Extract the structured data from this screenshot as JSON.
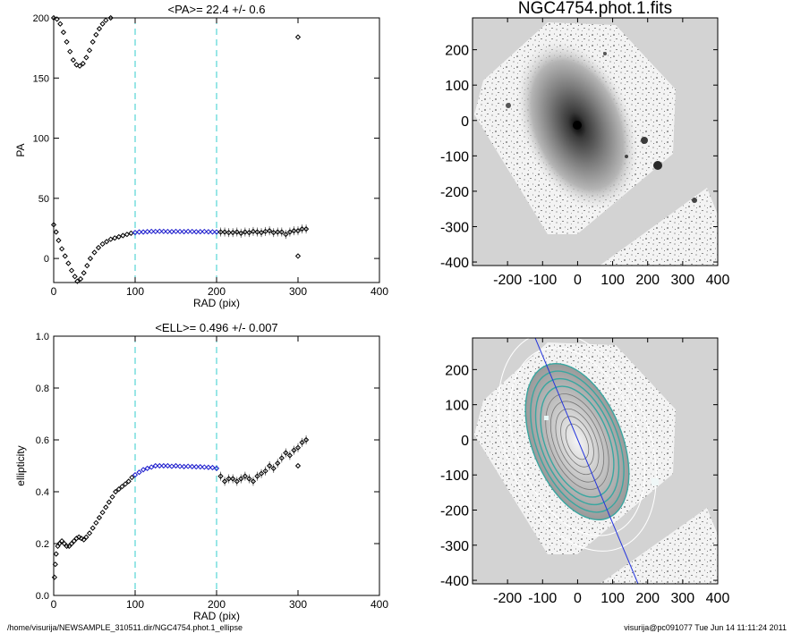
{
  "footer": {
    "path": "/home/visurija/NEWSAMPLE_310511.dir/NGC4754.phot.1_ellipse",
    "stamp": "visurija@pc091077  Tue Jun 14 11:11:24 2011"
  },
  "colors": {
    "marker": "#000000",
    "fit_marker": "#1a1acc",
    "guide_line": "#33cccc",
    "image_bg": "#d3d3d3",
    "major_axis": "#2233dd",
    "isophote": "#3aa6a0"
  },
  "chart_data": [
    {
      "type": "scatter",
      "panel": "pa-profile",
      "title": "<PA>=  22.4 +/-   0.6",
      "xlabel": "RAD (pix)",
      "ylabel": "PA",
      "xlim": [
        0,
        400
      ],
      "ylim": [
        -20,
        200
      ],
      "xticks": [
        0,
        100,
        200,
        300,
        400
      ],
      "yticks": [
        0,
        50,
        100,
        150,
        200
      ],
      "guide_lines_x": [
        100,
        200
      ],
      "series": [
        {
          "values_upper_branch": [
            [
              0,
              200
            ],
            [
              4,
              199
            ],
            [
              8,
              195
            ],
            [
              12,
              188
            ],
            [
              16,
              180
            ],
            [
              20,
              172
            ],
            [
              24,
              165
            ],
            [
              28,
              161
            ],
            [
              32,
              160
            ],
            [
              36,
              162
            ],
            [
              40,
              167
            ],
            [
              44,
              173
            ],
            [
              48,
              180
            ],
            [
              52,
              186
            ],
            [
              56,
              191
            ],
            [
              60,
              195
            ],
            [
              64,
              198
            ],
            [
              70,
              200
            ]
          ],
          "values_main": [
            [
              0,
              28
            ],
            [
              3,
              22
            ],
            [
              6,
              15
            ],
            [
              10,
              8
            ],
            [
              14,
              2
            ],
            [
              18,
              -4
            ],
            [
              22,
              -10
            ],
            [
              26,
              -15
            ],
            [
              29,
              -19
            ],
            [
              33,
              -17
            ],
            [
              37,
              -12
            ],
            [
              41,
              -6
            ],
            [
              45,
              0
            ],
            [
              50,
              5
            ],
            [
              55,
              9
            ],
            [
              60,
              12
            ],
            [
              65,
              14
            ],
            [
              70,
              16
            ],
            [
              75,
              17
            ],
            [
              80,
              18
            ],
            [
              85,
              19
            ],
            [
              90,
              20
            ],
            [
              95,
              21
            ]
          ],
          "values_fit": [
            [
              100,
              21.5
            ],
            [
              105,
              22
            ],
            [
              110,
              22
            ],
            [
              115,
              22.3
            ],
            [
              120,
              22.5
            ],
            [
              125,
              22.4
            ],
            [
              130,
              22.6
            ],
            [
              135,
              22.5
            ],
            [
              140,
              22.4
            ],
            [
              145,
              22.3
            ],
            [
              150,
              22.5
            ],
            [
              155,
              22.4
            ],
            [
              160,
              22.3
            ],
            [
              165,
              22.5
            ],
            [
              170,
              22.4
            ],
            [
              175,
              22.2
            ],
            [
              180,
              22.3
            ],
            [
              185,
              22.4
            ],
            [
              190,
              22.2
            ],
            [
              195,
              22.1
            ],
            [
              200,
              22
            ]
          ],
          "values_outer": [
            [
              205,
              22
            ],
            [
              210,
              22
            ],
            [
              215,
              21.5
            ],
            [
              220,
              21.5
            ],
            [
              225,
              22
            ],
            [
              230,
              21
            ],
            [
              235,
              22
            ],
            [
              240,
              21.5
            ],
            [
              245,
              22.5
            ],
            [
              250,
              22
            ],
            [
              255,
              21.5
            ],
            [
              260,
              22.5
            ],
            [
              265,
              23
            ],
            [
              270,
              21.5
            ],
            [
              275,
              22
            ],
            [
              280,
              22
            ],
            [
              285,
              20
            ],
            [
              290,
              22
            ],
            [
              295,
              23
            ],
            [
              300,
              23
            ],
            [
              305,
              24.5
            ],
            [
              310,
              24.5
            ]
          ],
          "outliers": [
            [
              300,
              184
            ],
            [
              300,
              2
            ]
          ]
        }
      ]
    },
    {
      "type": "scatter",
      "panel": "ellipticity-profile",
      "title": "<ELL>= 0.496 +/-  0.007",
      "xlabel": "RAD (pix)",
      "ylabel": "ellipticity",
      "xlim": [
        0,
        400
      ],
      "ylim": [
        0.0,
        1.0
      ],
      "xticks": [
        0,
        100,
        200,
        300,
        400
      ],
      "yticks": [
        0.0,
        0.2,
        0.4,
        0.6,
        0.8,
        1.0
      ],
      "ytick_labels": [
        "0.0",
        "0.2",
        "0.4",
        "0.6",
        "0.8",
        "1.0"
      ],
      "guide_lines_x": [
        100,
        200
      ],
      "series": [
        {
          "values_main": [
            [
              1,
              0.07
            ],
            [
              2,
              0.12
            ],
            [
              3,
              0.16
            ],
            [
              5,
              0.19
            ],
            [
              7,
              0.2
            ],
            [
              10,
              0.21
            ],
            [
              13,
              0.2
            ],
            [
              16,
              0.19
            ],
            [
              19,
              0.19
            ],
            [
              22,
              0.2
            ],
            [
              25,
              0.21
            ],
            [
              28,
              0.22
            ],
            [
              31,
              0.225
            ],
            [
              34,
              0.22
            ],
            [
              37,
              0.215
            ],
            [
              40,
              0.225
            ],
            [
              44,
              0.24
            ],
            [
              48,
              0.26
            ],
            [
              52,
              0.28
            ],
            [
              56,
              0.3
            ],
            [
              60,
              0.32
            ],
            [
              64,
              0.34
            ],
            [
              68,
              0.36
            ],
            [
              72,
              0.38
            ],
            [
              76,
              0.4
            ],
            [
              80,
              0.41
            ],
            [
              84,
              0.42
            ],
            [
              88,
              0.43
            ],
            [
              92,
              0.44
            ],
            [
              96,
              0.455
            ]
          ],
          "values_fit": [
            [
              100,
              0.465
            ],
            [
              105,
              0.475
            ],
            [
              110,
              0.485
            ],
            [
              115,
              0.49
            ],
            [
              120,
              0.495
            ],
            [
              125,
              0.5
            ],
            [
              130,
              0.5
            ],
            [
              135,
              0.5
            ],
            [
              140,
              0.5
            ],
            [
              145,
              0.498
            ],
            [
              150,
              0.5
            ],
            [
              155,
              0.498
            ],
            [
              160,
              0.497
            ],
            [
              165,
              0.498
            ],
            [
              170,
              0.497
            ],
            [
              175,
              0.496
            ],
            [
              180,
              0.496
            ],
            [
              185,
              0.495
            ],
            [
              190,
              0.494
            ],
            [
              195,
              0.493
            ],
            [
              200,
              0.49
            ]
          ],
          "values_outer": [
            [
              205,
              0.46
            ],
            [
              210,
              0.44
            ],
            [
              215,
              0.45
            ],
            [
              220,
              0.45
            ],
            [
              225,
              0.44
            ],
            [
              230,
              0.45
            ],
            [
              235,
              0.46
            ],
            [
              240,
              0.45
            ],
            [
              245,
              0.44
            ],
            [
              250,
              0.46
            ],
            [
              255,
              0.47
            ],
            [
              260,
              0.48
            ],
            [
              265,
              0.5
            ],
            [
              270,
              0.49
            ],
            [
              275,
              0.51
            ],
            [
              280,
              0.53
            ],
            [
              285,
              0.55
            ],
            [
              290,
              0.54
            ],
            [
              295,
              0.56
            ],
            [
              300,
              0.57
            ],
            [
              305,
              0.59
            ],
            [
              310,
              0.6
            ]
          ],
          "outliers": [
            [
              300,
              0.5
            ]
          ]
        }
      ]
    },
    {
      "type": "image",
      "panel": "galaxy-image",
      "title": "NGC4754.phot.1.fits",
      "xlim": [
        -300,
        400
      ],
      "ylim": [
        -410,
        290
      ],
      "xticks": [
        -200,
        -100,
        0,
        100,
        200,
        300,
        400
      ],
      "yticks": [
        -400,
        -300,
        -200,
        -100,
        0,
        100,
        200
      ]
    },
    {
      "type": "image",
      "panel": "model-residual-image",
      "title": "",
      "xlim": [
        -300,
        400
      ],
      "ylim": [
        -410,
        290
      ],
      "xticks": [
        -200,
        -100,
        0,
        100,
        200,
        300,
        400
      ],
      "yticks": [
        -400,
        -300,
        -200,
        -100,
        0,
        100,
        200
      ],
      "position_angle_deg": 22.4,
      "ellipticity": 0.496
    }
  ]
}
